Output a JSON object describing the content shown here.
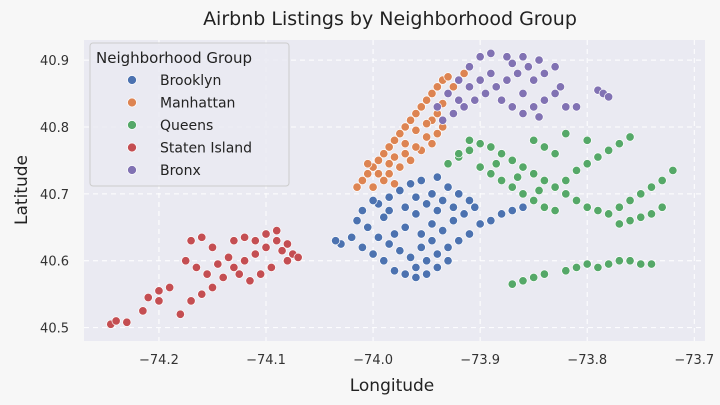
{
  "chart_data": {
    "type": "scatter",
    "title": "Airbnb Listings by Neighborhood Group",
    "xlabel": "Longitude",
    "ylabel": "Latitude",
    "xlim": [
      -74.27,
      -73.69
    ],
    "ylim": [
      40.48,
      40.93
    ],
    "xticks": [
      -74.2,
      -74.1,
      -74.0,
      -73.9,
      -73.8,
      -73.7
    ],
    "xtick_labels": [
      "−74.2",
      "−74.1",
      "−74.0",
      "−73.9",
      "−73.8",
      "−73.7"
    ],
    "yticks": [
      40.5,
      40.6,
      40.7,
      40.8,
      40.9
    ],
    "ytick_labels": [
      "40.5",
      "40.6",
      "40.7",
      "40.8",
      "40.9"
    ],
    "grid": true,
    "legend": {
      "title": "Neighborhood Group",
      "placement": "upper-left"
    },
    "series": [
      {
        "name": "Brooklyn",
        "color": "#4c72b0",
        "points": [
          [
            -74.03,
            40.625
          ],
          [
            -74.02,
            40.635
          ],
          [
            -74.01,
            40.62
          ],
          [
            -74.0,
            40.61
          ],
          [
            -73.99,
            40.6
          ],
          [
            -73.98,
            40.585
          ],
          [
            -73.97,
            40.58
          ],
          [
            -73.96,
            40.59
          ],
          [
            -73.95,
            40.6
          ],
          [
            -73.94,
            40.61
          ],
          [
            -73.93,
            40.62
          ],
          [
            -73.92,
            40.63
          ],
          [
            -73.91,
            40.64
          ],
          [
            -73.9,
            40.655
          ],
          [
            -73.89,
            40.66
          ],
          [
            -73.88,
            40.67
          ],
          [
            -73.87,
            40.675
          ],
          [
            -73.86,
            40.68
          ],
          [
            -73.995,
            40.685
          ],
          [
            -73.985,
            40.695
          ],
          [
            -73.975,
            40.705
          ],
          [
            -73.965,
            40.715
          ],
          [
            -73.955,
            40.72
          ],
          [
            -73.945,
            40.7
          ],
          [
            -73.935,
            40.69
          ],
          [
            -73.925,
            40.68
          ],
          [
            -73.915,
            40.67
          ],
          [
            -73.905,
            40.68
          ],
          [
            -73.96,
            40.67
          ],
          [
            -73.97,
            40.65
          ],
          [
            -73.98,
            40.64
          ],
          [
            -73.99,
            40.665
          ],
          [
            -74.005,
            40.65
          ],
          [
            -74.015,
            40.66
          ],
          [
            -73.955,
            40.64
          ],
          [
            -73.945,
            40.655
          ],
          [
            -73.935,
            40.645
          ],
          [
            -73.925,
            40.66
          ],
          [
            -73.95,
            40.685
          ],
          [
            -73.94,
            40.675
          ],
          [
            -73.96,
            40.695
          ],
          [
            -73.97,
            40.68
          ],
          [
            -73.985,
            40.675
          ],
          [
            -74.0,
            40.69
          ],
          [
            -74.01,
            40.675
          ],
          [
            -73.965,
            40.605
          ],
          [
            -73.975,
            40.615
          ],
          [
            -73.985,
            40.625
          ],
          [
            -73.995,
            40.635
          ],
          [
            -73.955,
            40.62
          ],
          [
            -73.945,
            40.63
          ],
          [
            -73.93,
            40.6
          ],
          [
            -73.94,
            40.59
          ],
          [
            -73.95,
            40.58
          ],
          [
            -73.96,
            40.575
          ],
          [
            -74.035,
            40.63
          ],
          [
            -73.91,
            40.69
          ],
          [
            -73.92,
            40.7
          ],
          [
            -73.93,
            40.71
          ],
          [
            -73.94,
            40.725
          ]
        ]
      },
      {
        "name": "Manhattan",
        "color": "#dd8452",
        "points": [
          [
            -74.015,
            40.71
          ],
          [
            -74.01,
            40.72
          ],
          [
            -74.005,
            40.73
          ],
          [
            -74.0,
            40.74
          ],
          [
            -73.995,
            40.75
          ],
          [
            -73.99,
            40.76
          ],
          [
            -73.985,
            40.77
          ],
          [
            -73.98,
            40.78
          ],
          [
            -73.975,
            40.79
          ],
          [
            -73.97,
            40.8
          ],
          [
            -73.965,
            40.81
          ],
          [
            -73.96,
            40.82
          ],
          [
            -73.955,
            40.83
          ],
          [
            -73.95,
            40.84
          ],
          [
            -73.945,
            40.85
          ],
          [
            -73.94,
            40.86
          ],
          [
            -73.935,
            40.87
          ],
          [
            -73.93,
            40.875
          ],
          [
            -73.985,
            40.73
          ],
          [
            -73.975,
            40.74
          ],
          [
            -73.965,
            40.75
          ],
          [
            -73.955,
            40.765
          ],
          [
            -73.945,
            40.775
          ],
          [
            -73.94,
            40.79
          ],
          [
            -73.935,
            40.8
          ],
          [
            -73.99,
            40.72
          ],
          [
            -73.98,
            40.715
          ],
          [
            -74.0,
            40.71
          ],
          [
            -73.97,
            40.76
          ],
          [
            -73.96,
            40.77
          ],
          [
            -73.95,
            40.785
          ],
          [
            -73.945,
            40.81
          ],
          [
            -73.94,
            40.82
          ],
          [
            -73.935,
            40.835
          ],
          [
            -73.93,
            40.85
          ],
          [
            -73.925,
            40.86
          ],
          [
            -73.92,
            40.87
          ],
          [
            -73.915,
            40.88
          ],
          [
            -74.005,
            40.745
          ],
          [
            -73.995,
            40.73
          ],
          [
            -73.98,
            40.755
          ],
          [
            -73.97,
            40.775
          ],
          [
            -73.96,
            40.795
          ],
          [
            -73.95,
            40.805
          ],
          [
            -73.985,
            40.745
          ]
        ]
      },
      {
        "name": "Queens",
        "color": "#55a868",
        "points": [
          [
            -73.93,
            40.745
          ],
          [
            -73.92,
            40.755
          ],
          [
            -73.91,
            40.765
          ],
          [
            -73.9,
            40.775
          ],
          [
            -73.89,
            40.77
          ],
          [
            -73.88,
            40.76
          ],
          [
            -73.87,
            40.75
          ],
          [
            -73.86,
            40.74
          ],
          [
            -73.85,
            40.73
          ],
          [
            -73.84,
            40.72
          ],
          [
            -73.83,
            40.71
          ],
          [
            -73.82,
            40.7
          ],
          [
            -73.81,
            40.69
          ],
          [
            -73.8,
            40.68
          ],
          [
            -73.79,
            40.675
          ],
          [
            -73.78,
            40.67
          ],
          [
            -73.77,
            40.68
          ],
          [
            -73.76,
            40.69
          ],
          [
            -73.75,
            40.7
          ],
          [
            -73.74,
            40.71
          ],
          [
            -73.73,
            40.72
          ],
          [
            -73.72,
            40.735
          ],
          [
            -73.9,
            40.74
          ],
          [
            -73.89,
            40.73
          ],
          [
            -73.88,
            40.72
          ],
          [
            -73.87,
            40.71
          ],
          [
            -73.86,
            40.7
          ],
          [
            -73.85,
            40.69
          ],
          [
            -73.84,
            40.68
          ],
          [
            -73.83,
            40.675
          ],
          [
            -73.82,
            40.72
          ],
          [
            -73.81,
            40.735
          ],
          [
            -73.8,
            40.745
          ],
          [
            -73.79,
            40.755
          ],
          [
            -73.78,
            40.765
          ],
          [
            -73.77,
            40.775
          ],
          [
            -73.76,
            40.785
          ],
          [
            -73.83,
            40.76
          ],
          [
            -73.84,
            40.77
          ],
          [
            -73.85,
            40.78
          ],
          [
            -73.82,
            40.79
          ],
          [
            -73.8,
            40.78
          ],
          [
            -73.75,
            40.665
          ],
          [
            -73.74,
            40.67
          ],
          [
            -73.73,
            40.68
          ],
          [
            -73.76,
            40.66
          ],
          [
            -73.77,
            40.655
          ],
          [
            -73.87,
            40.565
          ],
          [
            -73.86,
            40.57
          ],
          [
            -73.85,
            40.575
          ],
          [
            -73.84,
            40.58
          ],
          [
            -73.82,
            40.585
          ],
          [
            -73.81,
            40.59
          ],
          [
            -73.8,
            40.595
          ],
          [
            -73.79,
            40.59
          ],
          [
            -73.78,
            40.595
          ],
          [
            -73.77,
            40.6
          ],
          [
            -73.76,
            40.6
          ],
          [
            -73.75,
            40.595
          ],
          [
            -73.74,
            40.595
          ],
          [
            -73.91,
            40.78
          ],
          [
            -73.92,
            40.76
          ],
          [
            -73.885,
            40.745
          ],
          [
            -73.865,
            40.725
          ],
          [
            -73.845,
            40.705
          ]
        ]
      },
      {
        "name": "Staten Island",
        "color": "#c44e52",
        "points": [
          [
            -74.245,
            40.505
          ],
          [
            -74.24,
            40.51
          ],
          [
            -74.23,
            40.508
          ],
          [
            -74.215,
            40.525
          ],
          [
            -74.21,
            40.545
          ],
          [
            -74.2,
            40.555
          ],
          [
            -74.19,
            40.56
          ],
          [
            -74.18,
            40.52
          ],
          [
            -74.17,
            40.54
          ],
          [
            -74.16,
            40.55
          ],
          [
            -74.15,
            40.56
          ],
          [
            -74.14,
            40.575
          ],
          [
            -74.13,
            40.59
          ],
          [
            -74.12,
            40.6
          ],
          [
            -74.11,
            40.61
          ],
          [
            -74.1,
            40.62
          ],
          [
            -74.09,
            40.63
          ],
          [
            -74.085,
            40.615
          ],
          [
            -74.08,
            40.6
          ],
          [
            -74.075,
            40.61
          ],
          [
            -74.17,
            40.63
          ],
          [
            -74.16,
            40.635
          ],
          [
            -74.15,
            40.62
          ],
          [
            -74.13,
            40.63
          ],
          [
            -74.12,
            40.635
          ],
          [
            -74.11,
            40.63
          ],
          [
            -74.1,
            40.64
          ],
          [
            -74.09,
            40.645
          ],
          [
            -74.08,
            40.625
          ],
          [
            -74.07,
            40.605
          ],
          [
            -74.175,
            40.6
          ],
          [
            -74.165,
            40.59
          ],
          [
            -74.155,
            40.58
          ],
          [
            -74.145,
            40.595
          ],
          [
            -74.135,
            40.605
          ],
          [
            -74.125,
            40.58
          ],
          [
            -74.115,
            40.57
          ],
          [
            -74.105,
            40.58
          ],
          [
            -74.095,
            40.59
          ],
          [
            -74.2,
            40.54
          ]
        ]
      },
      {
        "name": "Bronx",
        "color": "#8172b3",
        "points": [
          [
            -73.935,
            40.81
          ],
          [
            -73.925,
            40.82
          ],
          [
            -73.915,
            40.83
          ],
          [
            -73.905,
            40.84
          ],
          [
            -73.895,
            40.85
          ],
          [
            -73.885,
            40.86
          ],
          [
            -73.875,
            40.87
          ],
          [
            -73.865,
            40.88
          ],
          [
            -73.855,
            40.89
          ],
          [
            -73.845,
            40.9
          ],
          [
            -73.9,
            40.905
          ],
          [
            -73.89,
            40.91
          ],
          [
            -73.91,
            40.89
          ],
          [
            -73.92,
            40.87
          ],
          [
            -73.93,
            40.85
          ],
          [
            -73.94,
            40.83
          ],
          [
            -73.88,
            40.84
          ],
          [
            -73.87,
            40.83
          ],
          [
            -73.86,
            40.82
          ],
          [
            -73.85,
            40.83
          ],
          [
            -73.84,
            40.84
          ],
          [
            -73.83,
            40.85
          ],
          [
            -73.825,
            40.86
          ],
          [
            -73.82,
            40.83
          ],
          [
            -73.81,
            40.83
          ],
          [
            -73.86,
            40.85
          ],
          [
            -73.85,
            40.87
          ],
          [
            -73.84,
            40.88
          ],
          [
            -73.83,
            40.89
          ],
          [
            -73.87,
            40.895
          ],
          [
            -73.89,
            40.88
          ],
          [
            -73.9,
            40.87
          ],
          [
            -73.91,
            40.86
          ],
          [
            -73.92,
            40.84
          ],
          [
            -73.79,
            40.855
          ],
          [
            -73.785,
            40.85
          ],
          [
            -73.78,
            40.845
          ],
          [
            -73.845,
            40.815
          ],
          [
            -73.875,
            40.905
          ],
          [
            -73.86,
            40.905
          ]
        ]
      }
    ]
  }
}
